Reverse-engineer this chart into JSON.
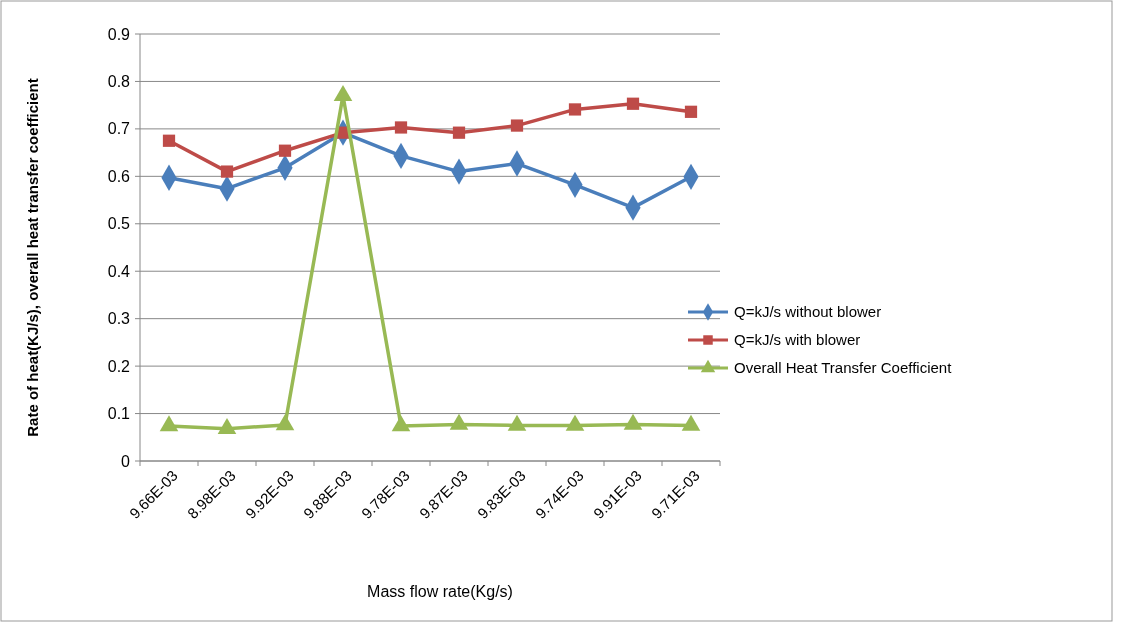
{
  "chart_data": {
    "type": "line",
    "xlabel": "Mass flow rate(Kg/s)",
    "ylabel": "Rate of heat(KJ/s), overall heat transfer coefficient",
    "categories": [
      "9.66E-03",
      "8.98E-03",
      "9.92E-03",
      "9.88E-03",
      "9.78E-03",
      "9.87E-03",
      "9.83E-03",
      "9.74E-03",
      "9.91E-03",
      "9.71E-03"
    ],
    "series": [
      {
        "name": "Q=kJ/s without blower",
        "color": "#4a7ebb",
        "marker": "diamond",
        "values": [
          0.597,
          0.574,
          0.618,
          0.692,
          0.643,
          0.61,
          0.627,
          0.582,
          0.534,
          0.599
        ]
      },
      {
        "name": "Q=kJ/s with blower",
        "color": "#be4b48",
        "marker": "square",
        "values": [
          0.675,
          0.61,
          0.654,
          0.692,
          0.703,
          0.692,
          0.707,
          0.741,
          0.753,
          0.736
        ]
      },
      {
        "name": "Overall Heat Transfer Coefficient",
        "color": "#98b954",
        "marker": "triangle",
        "values": [
          0.074,
          0.068,
          0.076,
          0.77,
          0.074,
          0.077,
          0.075,
          0.075,
          0.077,
          0.075
        ]
      }
    ],
    "ylim": [
      0,
      0.9
    ],
    "yticks": [
      0,
      0.1,
      0.2,
      0.3,
      0.4,
      0.5,
      0.6,
      0.7,
      0.8,
      0.9
    ],
    "grid": "y",
    "legend": "right"
  }
}
